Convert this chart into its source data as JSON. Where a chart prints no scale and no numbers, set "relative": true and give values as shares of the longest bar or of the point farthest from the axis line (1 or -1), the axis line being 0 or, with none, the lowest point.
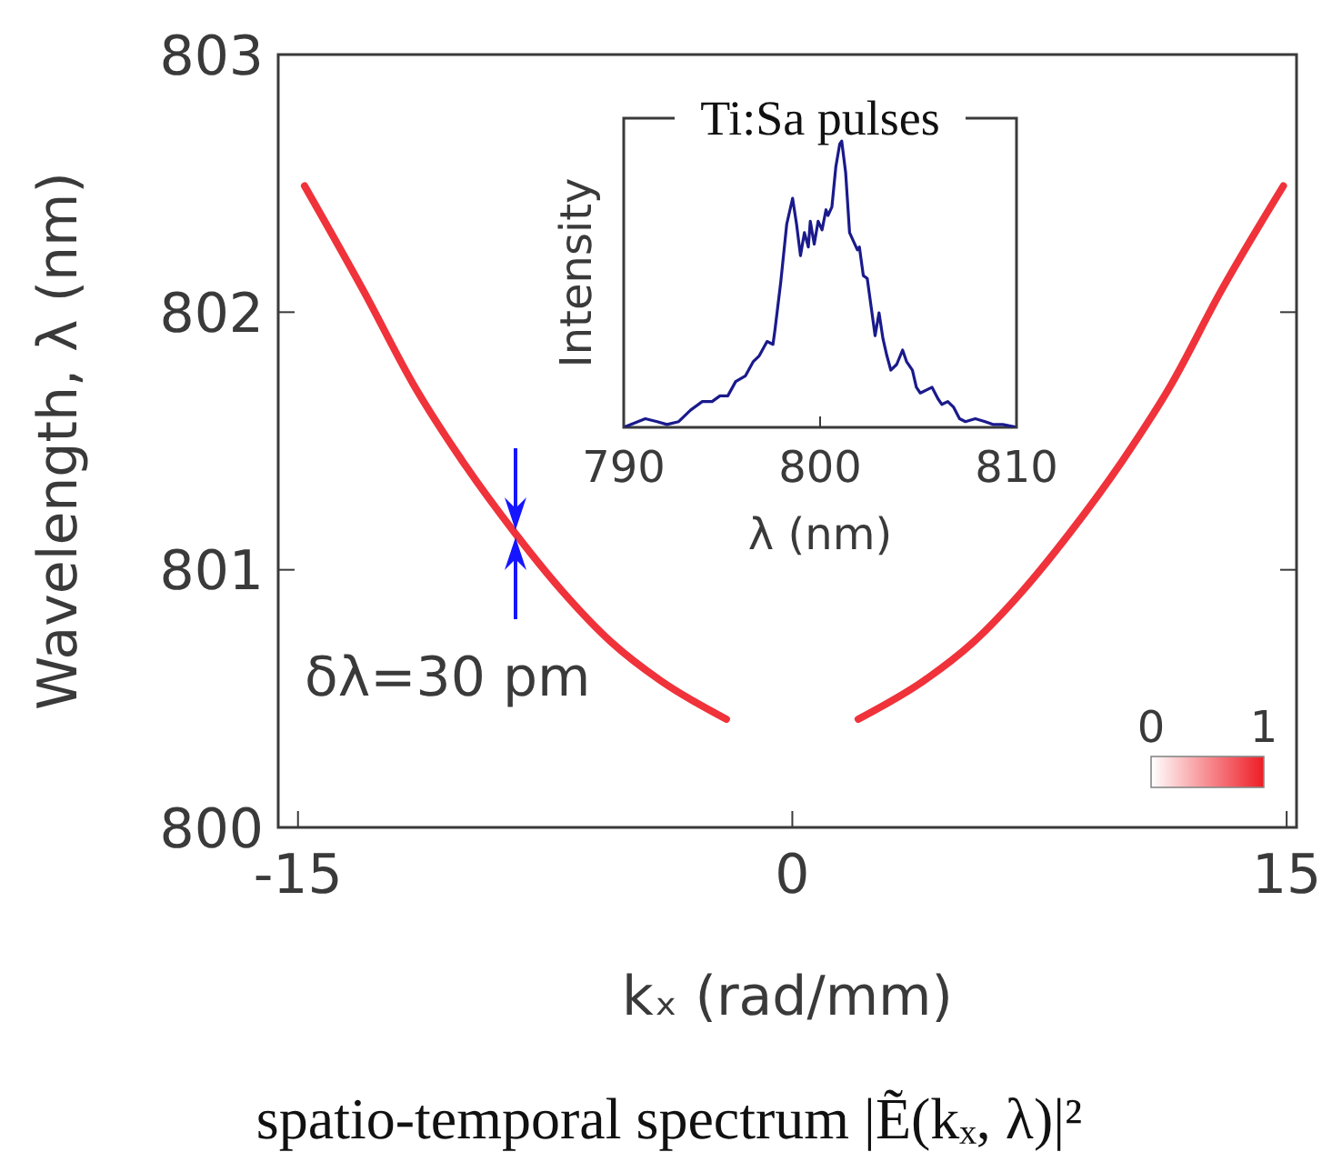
{
  "chart_data": [
    {
      "type": "line",
      "title": "spatio-temporal spectrum |Ẽ(kₓ, λ)|²",
      "xlabel": "kₓ (rad/mm)",
      "ylabel": "Wavelength, λ (nm)",
      "xlim": [
        -15.6,
        15.3
      ],
      "ylim": [
        800,
        803
      ],
      "xticks": [
        -15,
        0,
        15
      ],
      "yticks": [
        800,
        801,
        802,
        803
      ],
      "annotations": [
        {
          "text": "δλ=30 pm",
          "x": -8.4,
          "y": 801.14
        },
        "0",
        "1"
      ],
      "series": [
        {
          "color": "#ee1c25",
          "x": [
            -14.8,
            -13,
            -11.5,
            -10,
            -8.4,
            -7,
            -5.5,
            -4,
            -2
          ],
          "values": [
            802.49,
            802.08,
            801.72,
            801.42,
            801.14,
            800.92,
            800.72,
            800.57,
            800.42
          ]
        },
        {
          "color": "#ee1c25",
          "x": [
            2,
            4,
            5.5,
            7,
            8.4,
            10,
            11.5,
            13,
            14.9
          ],
          "values": [
            800.42,
            800.57,
            800.72,
            800.92,
            801.14,
            801.42,
            801.72,
            802.08,
            802.49
          ]
        }
      ]
    },
    {
      "type": "line",
      "title": "Ti:Sa pulses",
      "xlabel": "λ (nm)",
      "ylabel": "Intensity",
      "relative": true,
      "xlim": [
        790,
        810
      ],
      "xticks": [
        790,
        800,
        810
      ],
      "series": [
        {
          "color": "#1a1a8c",
          "x": [
            790,
            791.1,
            791.7,
            792.2,
            792.8,
            793.4,
            794,
            794.5,
            794.9,
            795.3,
            795.7,
            796.2,
            796.6,
            796.9,
            797.3,
            797.6,
            797.7,
            798,
            798.3,
            798.6,
            798.8,
            799,
            799.2,
            799.4,
            799.5,
            799.7,
            799.9,
            800.1,
            800.3,
            800.4,
            800.6,
            800.8,
            801,
            801.1,
            801.3,
            801.5,
            801.7,
            801.9,
            802,
            802.2,
            802.4,
            802.6,
            802.8,
            803,
            803.2,
            803.4,
            803.6,
            803.9,
            804.2,
            804.4,
            804.7,
            804.9,
            805.1,
            805.4,
            805.7,
            806,
            806.2,
            806.5,
            806.8,
            807.1,
            807.4,
            807.9,
            808.4,
            808.8,
            809.3,
            810
          ],
          "values": [
            0,
            0.03,
            0.02,
            0.01,
            0.02,
            0.06,
            0.09,
            0.09,
            0.11,
            0.11,
            0.16,
            0.18,
            0.23,
            0.25,
            0.3,
            0.29,
            0.34,
            0.51,
            0.71,
            0.8,
            0.71,
            0.6,
            0.68,
            0.63,
            0.72,
            0.64,
            0.72,
            0.69,
            0.76,
            0.74,
            0.77,
            0.91,
            0.99,
            1,
            0.89,
            0.68,
            0.65,
            0.62,
            0.63,
            0.53,
            0.52,
            0.42,
            0.32,
            0.4,
            0.31,
            0.25,
            0.2,
            0.22,
            0.27,
            0.23,
            0.2,
            0.14,
            0.12,
            0.13,
            0.14,
            0.1,
            0.08,
            0.09,
            0.07,
            0.03,
            0.02,
            0.03,
            0.02,
            0.01,
            0.01,
            0
          ]
        }
      ]
    }
  ]
}
